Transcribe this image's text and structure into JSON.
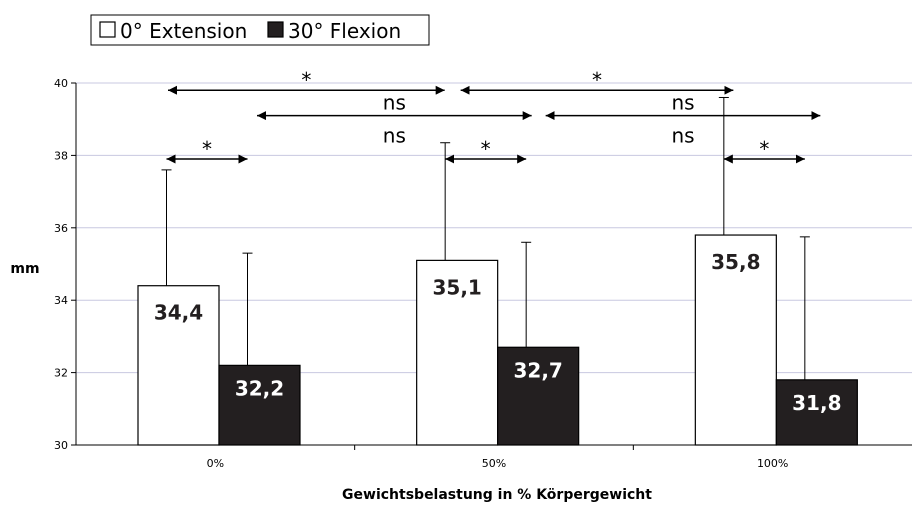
{
  "chart_data": {
    "type": "bar",
    "categories": [
      "0%",
      "50%",
      "100%"
    ],
    "series": [
      {
        "name": "0° Extension",
        "values": [
          34.4,
          35.1,
          35.8
        ],
        "error_top": [
          37.6,
          38.35,
          39.6
        ],
        "labels": [
          "34,4",
          "35,1",
          "35,8"
        ],
        "color": "#ffffff"
      },
      {
        "name": "30° Flexion",
        "values": [
          32.2,
          32.7,
          31.8
        ],
        "error_top": [
          35.3,
          35.6,
          35.75
        ],
        "labels": [
          "32,2",
          "32,7",
          "31,8"
        ],
        "color": "#231f20"
      }
    ],
    "xlabel": "Gewichtsbelastung in % Körpergewicht",
    "ylabel": "mm",
    "ylim": [
      30,
      40
    ],
    "yticks": [
      "30",
      "32",
      "34",
      "36",
      "38",
      "40"
    ],
    "grid": true,
    "legend_position": "top-left",
    "comparisons": [
      {
        "from": 0,
        "to": 2,
        "category": 0,
        "text": "*",
        "level": 39.8
      },
      {
        "from": 2,
        "to": 3,
        "category": 0,
        "text": "*",
        "level": 39.8
      },
      {
        "from": 1,
        "to": 2,
        "category": 0,
        "text": "ns",
        "level": 39.1
      },
      {
        "from": 2,
        "to": 3,
        "category": 1,
        "text": "ns",
        "level": 39.1
      },
      {
        "from": 0,
        "to": 1,
        "category": 0,
        "text": "*",
        "level": 37.9
      },
      {
        "from": 0,
        "to": 1,
        "category": 1,
        "text": "*",
        "level": 37.9
      },
      {
        "from": 0,
        "to": 1,
        "category": 2,
        "text": "*",
        "level": 37.9
      }
    ]
  }
}
